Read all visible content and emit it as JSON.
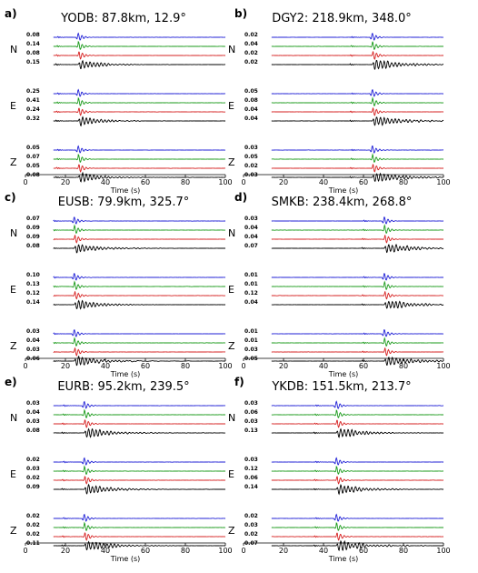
{
  "chart_data": {
    "type": "line",
    "x_range": [
      0,
      100
    ],
    "xticks": [
      "0",
      "20",
      "40",
      "60",
      "80",
      "100"
    ],
    "xlabel": "Time (s)",
    "colors": [
      "#1f1fd6",
      "#1a9a1a",
      "#d62020",
      "#000000"
    ],
    "panels": [
      {
        "letter": "a)",
        "title": "YODB: 87.8km, 12.9°",
        "arrival": 26,
        "coda": 0.18,
        "components": [
          {
            "name": "N",
            "amplitudes": [
              "0.08",
              "0.14",
              "0.08",
              "0.15"
            ]
          },
          {
            "name": "E",
            "amplitudes": [
              "0.25",
              "0.41",
              "0.24",
              "0.32"
            ]
          },
          {
            "name": "Z",
            "amplitudes": [
              "0.05",
              "0.07",
              "0.05",
              "0.08"
            ]
          }
        ]
      },
      {
        "letter": "b)",
        "title": "DGY2: 218.9km, 348.0°",
        "arrival": 64,
        "coda": 0.35,
        "components": [
          {
            "name": "N",
            "amplitudes": [
              "0.02",
              "0.04",
              "0.02",
              "0.02"
            ]
          },
          {
            "name": "E",
            "amplitudes": [
              "0.05",
              "0.08",
              "0.04",
              "0.04"
            ]
          },
          {
            "name": "Z",
            "amplitudes": [
              "0.03",
              "0.05",
              "0.02",
              "0.03"
            ]
          }
        ]
      },
      {
        "letter": "c)",
        "title": "EUSB: 79.9km, 325.7°",
        "arrival": 24,
        "coda": 0.25,
        "components": [
          {
            "name": "N",
            "amplitudes": [
              "0.07",
              "0.09",
              "0.09",
              "0.08"
            ]
          },
          {
            "name": "E",
            "amplitudes": [
              "0.10",
              "0.13",
              "0.12",
              "0.14"
            ]
          },
          {
            "name": "Z",
            "amplitudes": [
              "0.03",
              "0.04",
              "0.03",
              "0.06"
            ]
          }
        ]
      },
      {
        "letter": "d)",
        "title": "SMKB: 238.4km, 268.8°",
        "arrival": 70,
        "coda": 0.3,
        "components": [
          {
            "name": "N",
            "amplitudes": [
              "0.03",
              "0.04",
              "0.04",
              "0.07"
            ]
          },
          {
            "name": "E",
            "amplitudes": [
              "0.01",
              "0.01",
              "0.12",
              "0.04"
            ]
          },
          {
            "name": "Z",
            "amplitudes": [
              "0.01",
              "0.01",
              "0.03",
              "0.05"
            ]
          }
        ]
      },
      {
        "letter": "e)",
        "title": "EURB: 95.2km, 239.5°",
        "arrival": 29,
        "coda": 0.3,
        "components": [
          {
            "name": "N",
            "amplitudes": [
              "0.03",
              "0.04",
              "0.03",
              "0.08"
            ]
          },
          {
            "name": "E",
            "amplitudes": [
              "0.02",
              "0.03",
              "0.02",
              "0.09"
            ]
          },
          {
            "name": "Z",
            "amplitudes": [
              "0.02",
              "0.02",
              "0.02",
              "0.11"
            ]
          }
        ]
      },
      {
        "letter": "f)",
        "title": "YKDB: 151.5km, 213.7°",
        "arrival": 46,
        "coda": 0.3,
        "components": [
          {
            "name": "N",
            "amplitudes": [
              "0.03",
              "0.06",
              "0.03",
              "0.13"
            ]
          },
          {
            "name": "E",
            "amplitudes": [
              "0.03",
              "0.12",
              "0.06",
              "0.14"
            ]
          },
          {
            "name": "Z",
            "amplitudes": [
              "0.02",
              "0.03",
              "0.02",
              "0.07"
            ]
          }
        ]
      }
    ]
  }
}
